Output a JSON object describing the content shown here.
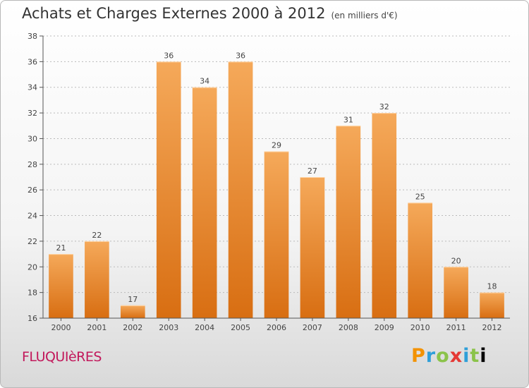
{
  "header": {
    "title": "Achats et Charges Externes 2000 à 2012",
    "subtitle": "(en milliers d'€)"
  },
  "footer": {
    "commune": "FLUQUIèRES",
    "brand": "Proxiti"
  },
  "colors": {
    "bar_light": "#f5a95a",
    "bar_dark": "#d86e12",
    "axis": "#555555",
    "grid": "#bbbbbb",
    "text": "#444444"
  },
  "chart_data": {
    "type": "bar",
    "categories": [
      "2000",
      "2001",
      "2002",
      "2003",
      "2004",
      "2005",
      "2006",
      "2007",
      "2008",
      "2009",
      "2010",
      "2011",
      "2012"
    ],
    "values": [
      21,
      22,
      17,
      36,
      34,
      36,
      29,
      27,
      31,
      32,
      25,
      20,
      18
    ],
    "ylim": [
      16,
      38
    ],
    "yticks": [
      16,
      18,
      20,
      22,
      24,
      26,
      28,
      30,
      32,
      34,
      36,
      38
    ],
    "grid": true,
    "grid_axis": "y",
    "data_labels": true
  }
}
